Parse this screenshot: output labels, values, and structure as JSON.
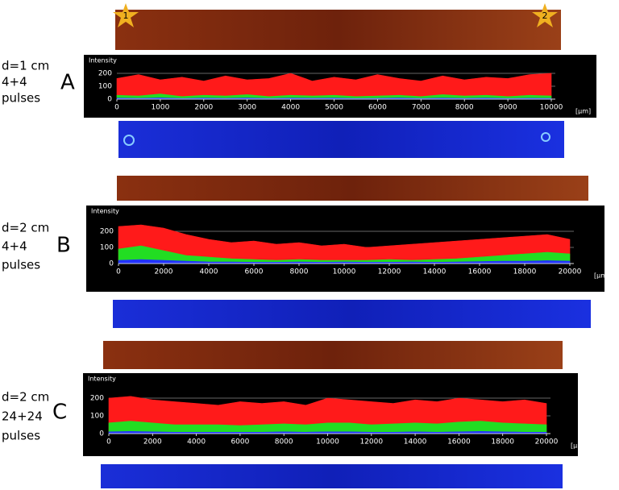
{
  "chart_data": [
    {
      "type": "area",
      "panel": "A",
      "condition": [
        "d=1 cm",
        "4+4",
        "pulses"
      ],
      "ylabel": "Intensity",
      "xlabel": "[µm]",
      "annotations": [
        "1",
        "2"
      ],
      "x": [
        0,
        500,
        1000,
        1500,
        2000,
        2500,
        3000,
        3500,
        4000,
        4500,
        5000,
        5500,
        6000,
        6500,
        7000,
        7500,
        8000,
        8500,
        9000,
        9500,
        10000
      ],
      "series": [
        {
          "color": "#ff1a1a",
          "values": [
            160,
            190,
            150,
            170,
            140,
            180,
            150,
            160,
            200,
            140,
            170,
            150,
            190,
            160,
            140,
            180,
            150,
            170,
            160,
            190,
            200
          ]
        },
        {
          "color": "#22dd22",
          "values": [
            30,
            25,
            40,
            20,
            30,
            25,
            35,
            20,
            30,
            25,
            30,
            20,
            25,
            30,
            20,
            35,
            25,
            30,
            20,
            30,
            25
          ]
        },
        {
          "color": "#2233ff",
          "values": [
            8,
            6,
            10,
            5,
            8,
            6,
            9,
            5,
            8,
            7,
            8,
            5,
            6,
            9,
            5,
            8,
            6,
            8,
            5,
            7,
            6
          ]
        }
      ],
      "xlim": [
        0,
        10000
      ],
      "xticks": [
        0,
        1000,
        2000,
        3000,
        4000,
        5000,
        6000,
        7000,
        8000,
        9000,
        10000
      ],
      "ylim": [
        0,
        250
      ],
      "yticks": [
        0,
        100,
        200
      ],
      "grid": true
    },
    {
      "type": "area",
      "panel": "B",
      "condition": [
        "d=2 cm",
        "4+4",
        "pulses"
      ],
      "ylabel": "Intensity",
      "xlabel": "[µm]",
      "x": [
        0,
        1000,
        2000,
        3000,
        4000,
        5000,
        6000,
        7000,
        8000,
        9000,
        10000,
        11000,
        12000,
        13000,
        14000,
        15000,
        16000,
        17000,
        18000,
        19000,
        20000
      ],
      "series": [
        {
          "color": "#ff1a1a",
          "values": [
            230,
            240,
            220,
            180,
            150,
            130,
            140,
            120,
            130,
            110,
            120,
            100,
            110,
            120,
            130,
            140,
            150,
            160,
            170,
            180,
            150
          ]
        },
        {
          "color": "#22dd22",
          "values": [
            90,
            110,
            80,
            50,
            40,
            30,
            25,
            20,
            25,
            20,
            20,
            20,
            25,
            20,
            25,
            30,
            40,
            50,
            60,
            70,
            60
          ]
        },
        {
          "color": "#2233ff",
          "values": [
            20,
            25,
            20,
            15,
            10,
            10,
            8,
            8,
            10,
            8,
            10,
            8,
            8,
            10,
            8,
            10,
            12,
            15,
            15,
            18,
            15
          ]
        }
      ],
      "xlim": [
        0,
        20000
      ],
      "xticks": [
        0,
        2000,
        4000,
        6000,
        8000,
        10000,
        12000,
        14000,
        16000,
        18000,
        20000
      ],
      "ylim": [
        0,
        250
      ],
      "yticks": [
        0,
        100,
        200
      ],
      "grid": true
    },
    {
      "type": "area",
      "panel": "C",
      "condition": [
        "d=2 cm",
        "24+24",
        "pulses"
      ],
      "ylabel": "Intensity",
      "xlabel": "[µm]",
      "x": [
        0,
        1000,
        2000,
        3000,
        4000,
        5000,
        6000,
        7000,
        8000,
        9000,
        10000,
        11000,
        12000,
        13000,
        14000,
        15000,
        16000,
        17000,
        18000,
        19000,
        20000
      ],
      "series": [
        {
          "color": "#ff1a1a",
          "values": [
            200,
            210,
            190,
            180,
            170,
            160,
            180,
            170,
            180,
            160,
            200,
            190,
            180,
            170,
            190,
            180,
            200,
            190,
            180,
            190,
            170
          ]
        },
        {
          "color": "#22dd22",
          "values": [
            60,
            70,
            60,
            50,
            50,
            50,
            45,
            50,
            55,
            50,
            60,
            60,
            50,
            55,
            60,
            55,
            65,
            70,
            60,
            55,
            50
          ]
        },
        {
          "color": "#2233ff",
          "values": [
            10,
            12,
            10,
            8,
            8,
            8,
            8,
            8,
            10,
            8,
            10,
            10,
            8,
            8,
            10,
            8,
            10,
            12,
            10,
            8,
            8
          ]
        }
      ],
      "xlim": [
        0,
        20000
      ],
      "xticks": [
        0,
        2000,
        4000,
        6000,
        8000,
        10000,
        12000,
        14000,
        16000,
        18000,
        20000
      ],
      "ylim": [
        0,
        250
      ],
      "yticks": [
        0,
        100,
        200
      ],
      "grid": true
    }
  ]
}
